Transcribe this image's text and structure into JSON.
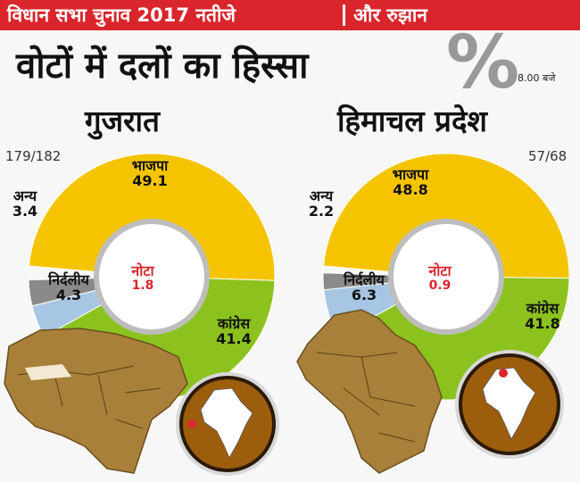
{
  "header": {
    "banner_left": "विधान सभा चुनाव 2017 नतीजे",
    "banner_right": "और रुझान",
    "headline": "वोटों में दलों का हिस्सा",
    "percent_symbol": "%",
    "time": "8.00 बजे"
  },
  "colors": {
    "bjp": "#f5c400",
    "congress": "#8cc21e",
    "independent": "#a7c6e3",
    "others": "#8a8a8a",
    "nota": "#d9252b",
    "banner": "#d9252b",
    "map": "#a8803a"
  },
  "chart_data": [
    {
      "type": "pie",
      "title": "गुजरात",
      "seats_counted": "179/182",
      "center_label": "नोटा",
      "center_value": 1.8,
      "categories": [
        "भाजपा",
        "कांग्रेस",
        "निर्दलीय",
        "अन्य"
      ],
      "values": [
        49.1,
        41.4,
        4.3,
        3.4
      ]
    },
    {
      "type": "pie",
      "title": "हिमाचल प्रदेश",
      "seats_counted": "57/68",
      "center_label": "नोटा",
      "center_value": 0.9,
      "categories": [
        "भाजपा",
        "कांग्रेस",
        "निर्दलीय",
        "अन्य"
      ],
      "values": [
        48.8,
        41.8,
        6.3,
        2.2
      ]
    }
  ]
}
